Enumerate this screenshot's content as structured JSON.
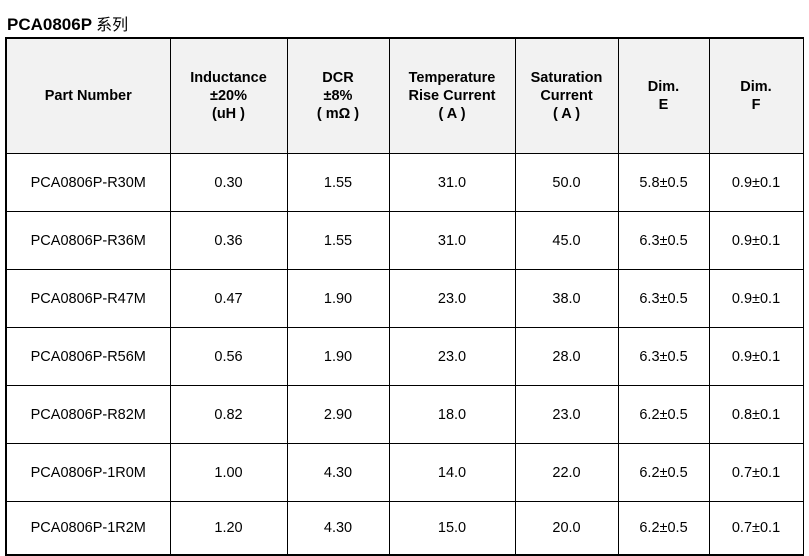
{
  "title": {
    "series": "PCA0806P",
    "suffix": "系列"
  },
  "table": {
    "headers": [
      {
        "lines": [
          "Part Number"
        ]
      },
      {
        "lines": [
          "Inductance",
          "±20%",
          "(uH )"
        ]
      },
      {
        "lines": [
          "DCR",
          "±8%",
          "( mΩ )"
        ]
      },
      {
        "lines": [
          "Temperature",
          "Rise Current",
          "( A )"
        ]
      },
      {
        "lines": [
          "Saturation",
          "Current",
          "( A )"
        ]
      },
      {
        "lines": [
          "Dim.",
          "E"
        ]
      },
      {
        "lines": [
          "Dim.",
          "F"
        ]
      }
    ],
    "rows": [
      [
        "PCA0806P-R30M",
        "0.30",
        "1.55",
        "31.0",
        "50.0",
        "5.8±0.5",
        "0.9±0.1"
      ],
      [
        "PCA0806P-R36M",
        "0.36",
        "1.55",
        "31.0",
        "45.0",
        "6.3±0.5",
        "0.9±0.1"
      ],
      [
        "PCA0806P-R47M",
        "0.47",
        "1.90",
        "23.0",
        "38.0",
        "6.3±0.5",
        "0.9±0.1"
      ],
      [
        "PCA0806P-R56M",
        "0.56",
        "1.90",
        "23.0",
        "28.0",
        "6.3±0.5",
        "0.9±0.1"
      ],
      [
        "PCA0806P-R82M",
        "0.82",
        "2.90",
        "18.0",
        "23.0",
        "6.2±0.5",
        "0.8±0.1"
      ],
      [
        "PCA0806P-1R0M",
        "1.00",
        "4.30",
        "14.0",
        "22.0",
        "6.2±0.5",
        "0.7±0.1"
      ],
      [
        "PCA0806P-1R2M",
        "1.20",
        "4.30",
        "15.0",
        "20.0",
        "6.2±0.5",
        "0.7±0.1"
      ]
    ]
  }
}
